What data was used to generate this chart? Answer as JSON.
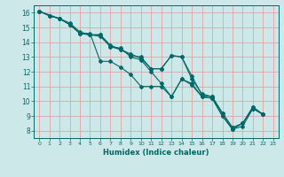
{
  "xlabel": "Humidex (Indice chaleur)",
  "xlim": [
    -0.5,
    23.5
  ],
  "ylim": [
    7.5,
    16.5
  ],
  "xticks": [
    0,
    1,
    2,
    3,
    4,
    5,
    6,
    7,
    8,
    9,
    10,
    11,
    12,
    13,
    14,
    15,
    16,
    17,
    18,
    19,
    20,
    21,
    22,
    23
  ],
  "yticks": [
    8,
    9,
    10,
    11,
    12,
    13,
    14,
    15,
    16
  ],
  "bg_color": "#cce8e8",
  "grid_major_color": "#e8a0a0",
  "line_color": "#006868",
  "curves": [
    {
      "x": [
        0,
        1,
        2,
        3,
        4,
        5,
        6,
        7,
        8,
        9,
        10,
        11,
        12,
        13,
        14,
        15,
        16,
        17,
        18,
        19,
        20,
        21,
        22
      ],
      "y": [
        16.1,
        15.8,
        15.6,
        15.2,
        14.6,
        14.6,
        12.7,
        12.7,
        12.3,
        11.8,
        11.0,
        11.0,
        11.0,
        10.3,
        11.5,
        11.2,
        10.3,
        10.2,
        9.0,
        8.1,
        8.3,
        9.5,
        9.1
      ]
    },
    {
      "x": [
        0,
        1,
        2,
        3,
        4,
        5,
        6,
        7,
        8,
        9,
        10,
        11,
        12,
        13,
        14,
        15,
        16,
        17,
        18,
        19,
        20,
        21,
        22
      ],
      "y": [
        16.1,
        15.8,
        15.6,
        15.3,
        14.7,
        14.5,
        14.5,
        13.7,
        13.5,
        13.1,
        13.0,
        12.2,
        12.2,
        13.1,
        13.0,
        11.5,
        10.5,
        10.3,
        9.2,
        8.2,
        8.5,
        9.6,
        9.1
      ]
    },
    {
      "x": [
        0,
        1,
        2,
        3,
        4,
        5,
        6,
        7,
        8,
        9,
        10,
        11,
        12,
        13,
        14,
        15,
        16,
        17,
        18,
        19,
        20,
        21,
        22
      ],
      "y": [
        16.1,
        15.8,
        15.6,
        15.2,
        14.6,
        14.5,
        14.5,
        13.8,
        13.5,
        13.2,
        12.9,
        12.2,
        12.2,
        13.1,
        13.0,
        11.7,
        10.4,
        10.3,
        9.2,
        8.2,
        8.5,
        9.6,
        9.1
      ]
    },
    {
      "x": [
        0,
        2,
        3,
        4,
        5,
        6,
        7,
        8,
        9,
        10,
        11,
        12,
        13,
        14,
        15,
        16,
        17,
        18,
        19,
        20,
        21,
        22
      ],
      "y": [
        16.1,
        15.6,
        15.2,
        14.6,
        14.5,
        14.4,
        13.7,
        13.6,
        13.0,
        12.8,
        12.0,
        11.2,
        10.3,
        11.5,
        11.1,
        10.3,
        10.2,
        9.0,
        8.1,
        8.5,
        9.5,
        9.1
      ]
    }
  ]
}
